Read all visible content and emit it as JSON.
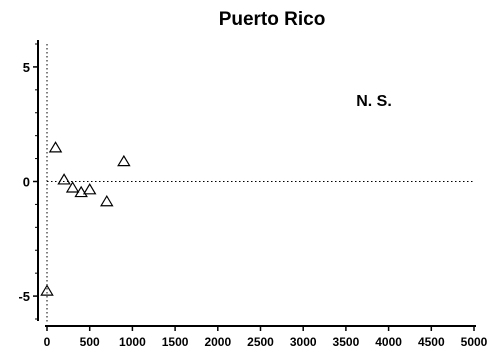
{
  "chart_data": {
    "type": "scatter",
    "title": "Puerto Rico",
    "annotation": "N. S.",
    "xlabel": "",
    "ylabel": "",
    "xlim": [
      0,
      5000
    ],
    "ylim": [
      -6,
      6
    ],
    "xticks": [
      0,
      500,
      1000,
      1500,
      2000,
      2500,
      3000,
      3500,
      4000,
      4500,
      5000
    ],
    "yticks": [
      -5,
      0,
      5
    ],
    "reference_lines": {
      "x": 0,
      "y": 0,
      "style": "dotted"
    },
    "marker": "open-triangle",
    "points": [
      {
        "x": 0,
        "y": -4.8
      },
      {
        "x": 100,
        "y": 1.45
      },
      {
        "x": 200,
        "y": 0.05
      },
      {
        "x": 300,
        "y": -0.3
      },
      {
        "x": 400,
        "y": -0.5
      },
      {
        "x": 500,
        "y": -0.38
      },
      {
        "x": 700,
        "y": -0.9
      },
      {
        "x": 900,
        "y": 0.85
      }
    ],
    "grid": false
  }
}
